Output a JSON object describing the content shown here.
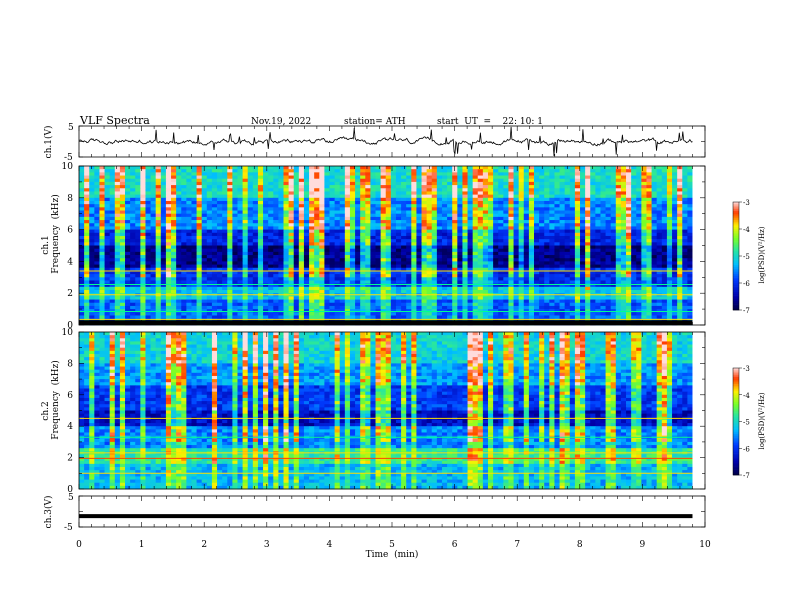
{
  "header": {
    "title": "VLF  Spectra",
    "date": "Nov.19, 2022",
    "station": "station= ATH",
    "start": "start  UT  =    22: 10: 1"
  },
  "chart_data": [
    {
      "type": "line",
      "title": "",
      "ylabel": "ch.1(V)",
      "ylim": [
        -5,
        5
      ],
      "yticks": [
        "5",
        "-5"
      ],
      "xlim": [
        0,
        10
      ],
      "series": [
        {
          "baseline": 0,
          "values_note_free": true
        }
      ]
    },
    {
      "type": "heatmap",
      "ylabel_top": "ch.1",
      "ylabel": "Frequency  (kHz)",
      "ylim": [
        0,
        10
      ],
      "yticks": [
        "0",
        "2",
        "4",
        "6",
        "8",
        "10"
      ],
      "xlim": [
        0,
        10
      ],
      "colorbar": {
        "label": "log(PSD)(V²/Hz)",
        "range": [
          -7,
          -3
        ],
        "ticks": [
          "-3",
          "-4",
          "-5",
          "-6",
          "-7"
        ]
      }
    },
    {
      "type": "heatmap",
      "ylabel_top": "ch.2",
      "ylabel": "Frequency  (kHz)",
      "ylim": [
        0,
        10
      ],
      "yticks": [
        "0",
        "2",
        "4",
        "6",
        "8",
        "10"
      ],
      "xlim": [
        0,
        10
      ],
      "colorbar": {
        "label": "log(PSD)(V²/Hz)",
        "range": [
          -7,
          -3
        ],
        "ticks": [
          "-3",
          "-4",
          "-5",
          "-6",
          "-7"
        ]
      }
    },
    {
      "type": "line",
      "ylabel": "ch.3(V)",
      "ylim": [
        -5,
        5
      ],
      "yticks": [
        "5",
        "-5"
      ],
      "xlim": [
        0,
        10
      ],
      "series": [
        {
          "constant_value": -1.5
        }
      ]
    }
  ],
  "xaxis": {
    "label": "Time  (min)",
    "ticks": [
      "0",
      "1",
      "2",
      "3",
      "4",
      "5",
      "6",
      "7",
      "8",
      "9",
      "10"
    ],
    "data_end": 9.8
  }
}
